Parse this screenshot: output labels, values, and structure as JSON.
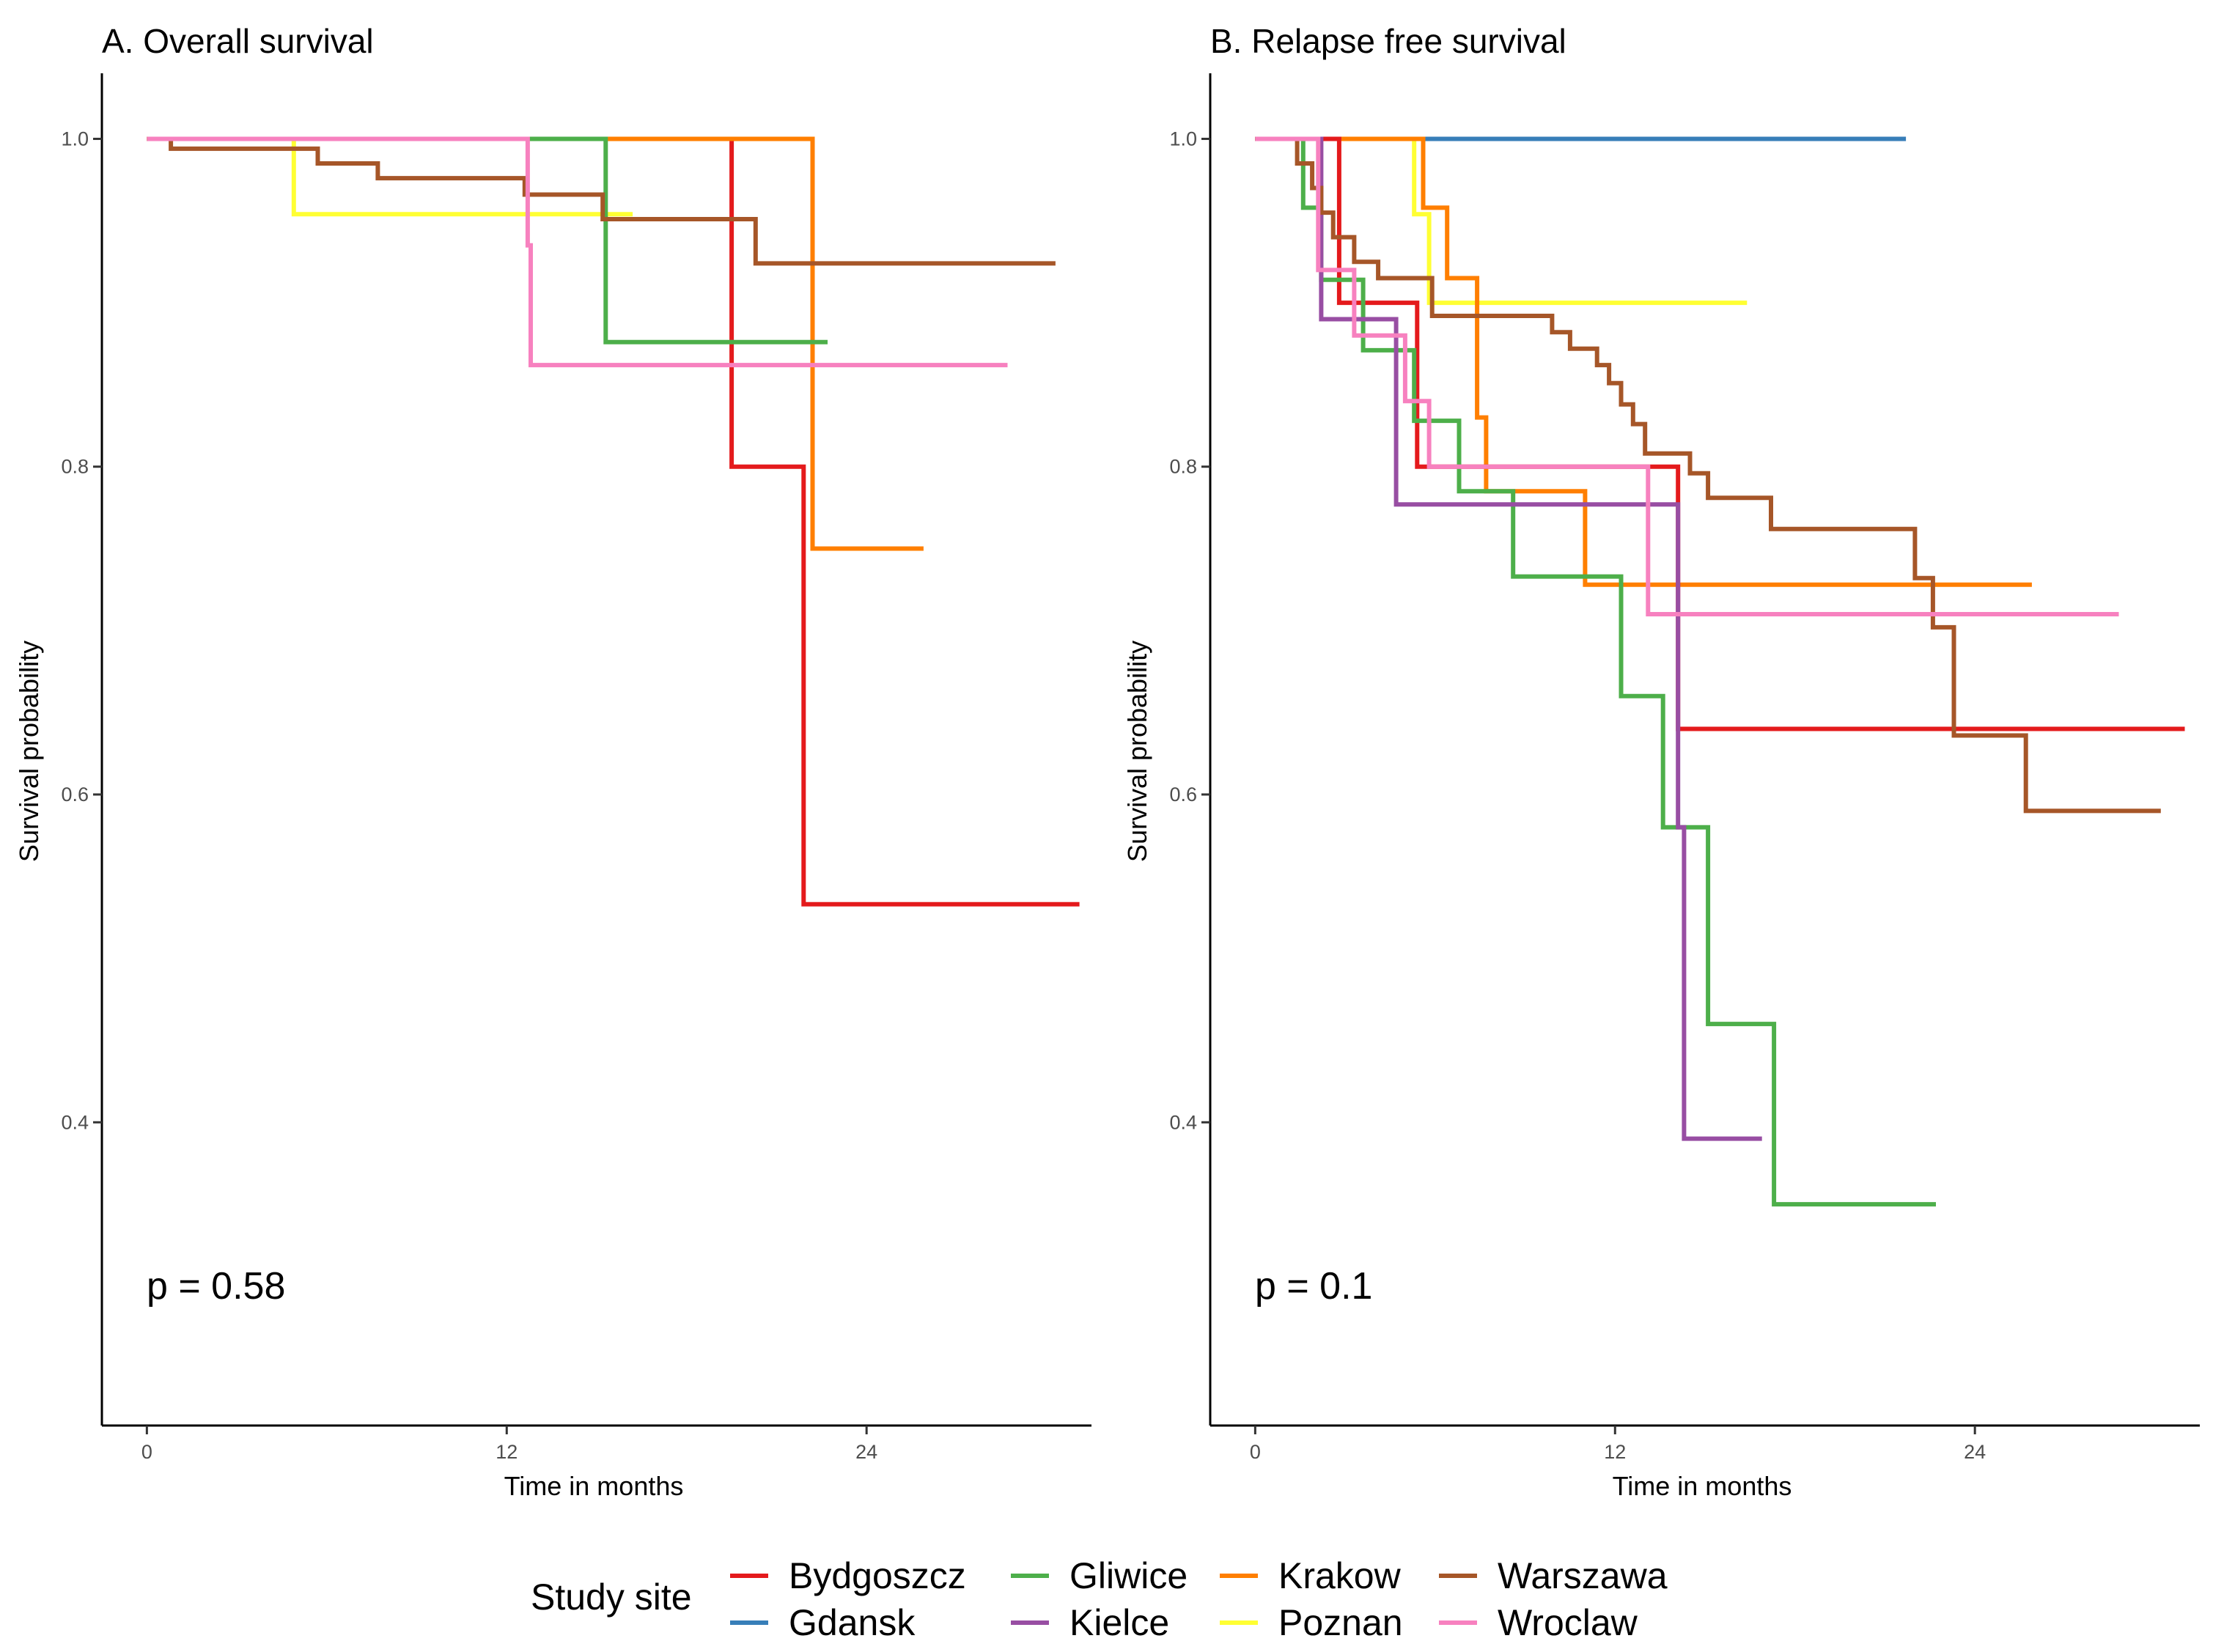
{
  "colors": {
    "Bydgoszcz": "#E41A1C",
    "Gdansk": "#377EB8",
    "Gliwice": "#4DAF4A",
    "Kielce": "#984EA3",
    "Krakow": "#FF7F00",
    "Poznan": "#FFFF33",
    "Warszawa": "#A65628",
    "Wroclaw": "#F781BF"
  },
  "legend": {
    "title": "Study site",
    "items": [
      "Bydgoszcz",
      "Gdansk",
      "Gliwice",
      "Kielce",
      "Krakow",
      "Poznan",
      "Warszawa",
      "Wroclaw"
    ]
  },
  "chart_data": [
    {
      "type": "line",
      "step": true,
      "title": "A. Overall survival",
      "xlabel": "Time in months",
      "ylabel": "Survival probability",
      "xlim": [
        -1.5,
        31.5
      ],
      "ylim": [
        0.215,
        1.04
      ],
      "xticks": [
        0,
        12,
        24
      ],
      "yticks": [
        0.4,
        0.6,
        0.8,
        1.0
      ],
      "ytick_labels": [
        "0.4",
        "0.6",
        "0.8",
        "1.0"
      ],
      "annotation": "p = 0.58",
      "series": [
        {
          "name": "Poznan",
          "points": [
            [
              0,
              1.0
            ],
            [
              4.9,
              1.0
            ],
            [
              4.9,
              0.954
            ],
            [
              16.2,
              0.954
            ]
          ]
        },
        {
          "name": "Bydgoszcz",
          "points": [
            [
              0,
              1.0
            ],
            [
              19.5,
              1.0
            ],
            [
              19.5,
              0.8
            ],
            [
              21.9,
              0.8
            ],
            [
              21.9,
              0.533
            ],
            [
              31.1,
              0.533
            ]
          ]
        },
        {
          "name": "Krakow",
          "points": [
            [
              0,
              1.0
            ],
            [
              22.2,
              1.0
            ],
            [
              22.2,
              0.75
            ],
            [
              25.9,
              0.75
            ]
          ]
        },
        {
          "name": "Gliwice",
          "points": [
            [
              0,
              1.0
            ],
            [
              15.3,
              1.0
            ],
            [
              15.3,
              0.876
            ],
            [
              22.7,
              0.876
            ]
          ]
        },
        {
          "name": "Warszawa",
          "points": [
            [
              0,
              1.0
            ],
            [
              0.8,
              1.0
            ],
            [
              0.8,
              0.994
            ],
            [
              5.7,
              0.994
            ],
            [
              5.7,
              0.985
            ],
            [
              7.7,
              0.985
            ],
            [
              7.7,
              0.976
            ],
            [
              12.6,
              0.976
            ],
            [
              12.6,
              0.966
            ],
            [
              15.2,
              0.966
            ],
            [
              15.2,
              0.951
            ],
            [
              20.3,
              0.951
            ],
            [
              20.3,
              0.924
            ],
            [
              30.3,
              0.924
            ]
          ]
        },
        {
          "name": "Wroclaw",
          "points": [
            [
              0,
              1.0
            ],
            [
              12.7,
              1.0
            ],
            [
              12.7,
              0.935
            ],
            [
              12.8,
              0.935
            ],
            [
              12.8,
              0.862
            ],
            [
              28.7,
              0.862
            ]
          ]
        }
      ]
    },
    {
      "type": "line",
      "step": true,
      "title": "B. Relapse free survival",
      "xlabel": "Time in months",
      "ylabel": "Survival probability",
      "xlim": [
        -1.5,
        31.5
      ],
      "ylim": [
        0.215,
        1.04
      ],
      "xticks": [
        0,
        12,
        24
      ],
      "yticks": [
        0.4,
        0.6,
        0.8,
        1.0
      ],
      "ytick_labels": [
        "0.4",
        "0.6",
        "0.8",
        "1.0"
      ],
      "annotation": "p = 0.1",
      "series": [
        {
          "name": "Gdansk",
          "points": [
            [
              0,
              1.0
            ],
            [
              21.7,
              1.0
            ]
          ]
        },
        {
          "name": "Poznan",
          "points": [
            [
              0,
              1.0
            ],
            [
              5.3,
              1.0
            ],
            [
              5.3,
              0.954
            ],
            [
              5.8,
              0.954
            ],
            [
              5.8,
              0.9
            ],
            [
              16.4,
              0.9
            ]
          ]
        },
        {
          "name": "Krakow",
          "points": [
            [
              0,
              1.0
            ],
            [
              5.6,
              1.0
            ],
            [
              5.6,
              0.958
            ],
            [
              6.4,
              0.958
            ],
            [
              6.4,
              0.915
            ],
            [
              7.4,
              0.915
            ],
            [
              7.4,
              0.83
            ],
            [
              7.7,
              0.83
            ],
            [
              7.7,
              0.785
            ],
            [
              11.0,
              0.785
            ],
            [
              11.0,
              0.728
            ],
            [
              25.9,
              0.728
            ]
          ]
        },
        {
          "name": "Bydgoszcz",
          "points": [
            [
              0,
              1.0
            ],
            [
              2.8,
              1.0
            ],
            [
              2.8,
              0.9
            ],
            [
              5.4,
              0.9
            ],
            [
              5.4,
              0.8
            ],
            [
              14.1,
              0.8
            ],
            [
              14.1,
              0.64
            ],
            [
              31.0,
              0.64
            ]
          ]
        },
        {
          "name": "Gliwice",
          "points": [
            [
              0,
              1.0
            ],
            [
              1.6,
              1.0
            ],
            [
              1.6,
              0.958
            ],
            [
              2.2,
              0.958
            ],
            [
              2.2,
              0.914
            ],
            [
              3.6,
              0.914
            ],
            [
              3.6,
              0.871
            ],
            [
              5.3,
              0.871
            ],
            [
              5.3,
              0.828
            ],
            [
              6.8,
              0.828
            ],
            [
              6.8,
              0.785
            ],
            [
              8.6,
              0.785
            ],
            [
              8.6,
              0.733
            ],
            [
              12.2,
              0.733
            ],
            [
              12.2,
              0.66
            ],
            [
              13.6,
              0.66
            ],
            [
              13.6,
              0.58
            ],
            [
              15.1,
              0.58
            ],
            [
              15.1,
              0.46
            ],
            [
              17.3,
              0.46
            ],
            [
              17.3,
              0.35
            ],
            [
              22.7,
              0.35
            ]
          ]
        },
        {
          "name": "Kielce",
          "points": [
            [
              0,
              1.0
            ],
            [
              2.2,
              1.0
            ],
            [
              2.2,
              0.89
            ],
            [
              4.7,
              0.89
            ],
            [
              4.7,
              0.777
            ],
            [
              14.1,
              0.777
            ],
            [
              14.1,
              0.58
            ],
            [
              14.3,
              0.58
            ],
            [
              14.3,
              0.39
            ],
            [
              16.9,
              0.39
            ]
          ]
        },
        {
          "name": "Warszawa",
          "points": [
            [
              0,
              1.0
            ],
            [
              1.4,
              1.0
            ],
            [
              1.4,
              0.985
            ],
            [
              1.9,
              0.985
            ],
            [
              1.9,
              0.97
            ],
            [
              2.2,
              0.97
            ],
            [
              2.2,
              0.955
            ],
            [
              2.6,
              0.955
            ],
            [
              2.6,
              0.94
            ],
            [
              3.3,
              0.94
            ],
            [
              3.3,
              0.925
            ],
            [
              4.1,
              0.925
            ],
            [
              4.1,
              0.915
            ],
            [
              5.9,
              0.915
            ],
            [
              5.9,
              0.892
            ],
            [
              9.9,
              0.892
            ],
            [
              9.9,
              0.882
            ],
            [
              10.5,
              0.882
            ],
            [
              10.5,
              0.872
            ],
            [
              11.4,
              0.872
            ],
            [
              11.4,
              0.862
            ],
            [
              11.8,
              0.862
            ],
            [
              11.8,
              0.851
            ],
            [
              12.2,
              0.851
            ],
            [
              12.2,
              0.838
            ],
            [
              12.6,
              0.838
            ],
            [
              12.6,
              0.826
            ],
            [
              13.0,
              0.826
            ],
            [
              13.0,
              0.808
            ],
            [
              14.5,
              0.808
            ],
            [
              14.5,
              0.796
            ],
            [
              15.1,
              0.796
            ],
            [
              15.1,
              0.781
            ],
            [
              17.2,
              0.781
            ],
            [
              17.2,
              0.762
            ],
            [
              22.0,
              0.762
            ],
            [
              22.0,
              0.732
            ],
            [
              22.6,
              0.732
            ],
            [
              22.6,
              0.702
            ],
            [
              23.3,
              0.702
            ],
            [
              23.3,
              0.636
            ],
            [
              25.7,
              0.636
            ],
            [
              25.7,
              0.59
            ],
            [
              30.2,
              0.59
            ]
          ]
        },
        {
          "name": "Wroclaw",
          "points": [
            [
              0,
              1.0
            ],
            [
              2.1,
              1.0
            ],
            [
              2.1,
              0.92
            ],
            [
              3.3,
              0.92
            ],
            [
              3.3,
              0.88
            ],
            [
              5.0,
              0.88
            ],
            [
              5.0,
              0.84
            ],
            [
              5.8,
              0.84
            ],
            [
              5.8,
              0.8
            ],
            [
              13.1,
              0.8
            ],
            [
              13.1,
              0.71
            ],
            [
              28.8,
              0.71
            ]
          ]
        }
      ]
    }
  ]
}
